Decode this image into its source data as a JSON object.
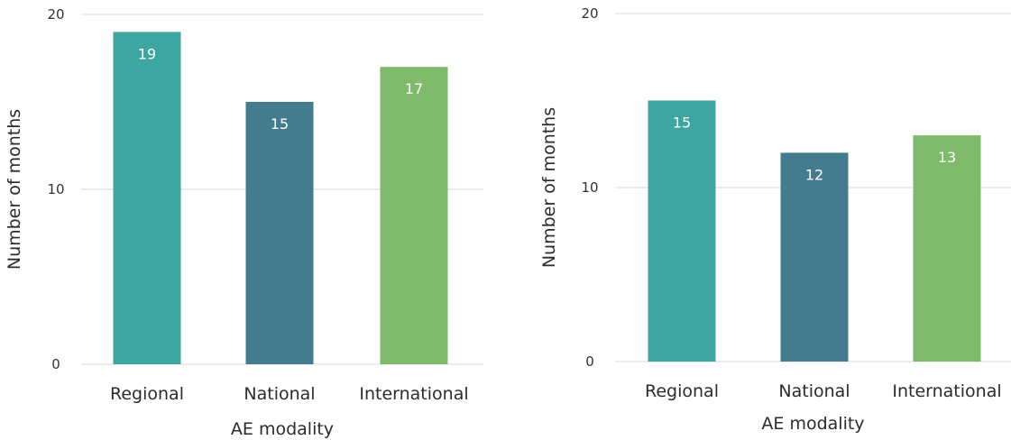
{
  "chart_data": [
    {
      "type": "bar",
      "categories": [
        "Regional",
        "National",
        "International"
      ],
      "values": [
        19,
        15,
        17
      ],
      "colors": [
        "#3ea6a0",
        "#427c8e",
        "#7fb96a"
      ],
      "title": "",
      "xlabel": "AE modality",
      "ylabel": "Number of months",
      "ylim": [
        0,
        20
      ],
      "yticks": [
        0,
        10,
        20
      ],
      "grid": true
    },
    {
      "type": "bar",
      "categories": [
        "Regional",
        "National",
        "International"
      ],
      "values": [
        15,
        12,
        13
      ],
      "colors": [
        "#3ea6a0",
        "#427c8e",
        "#7fb96a"
      ],
      "title": "",
      "xlabel": "AE modality",
      "ylabel": "Number of months",
      "ylim": [
        0,
        20
      ],
      "yticks": [
        0,
        10,
        20
      ],
      "grid": true
    }
  ]
}
